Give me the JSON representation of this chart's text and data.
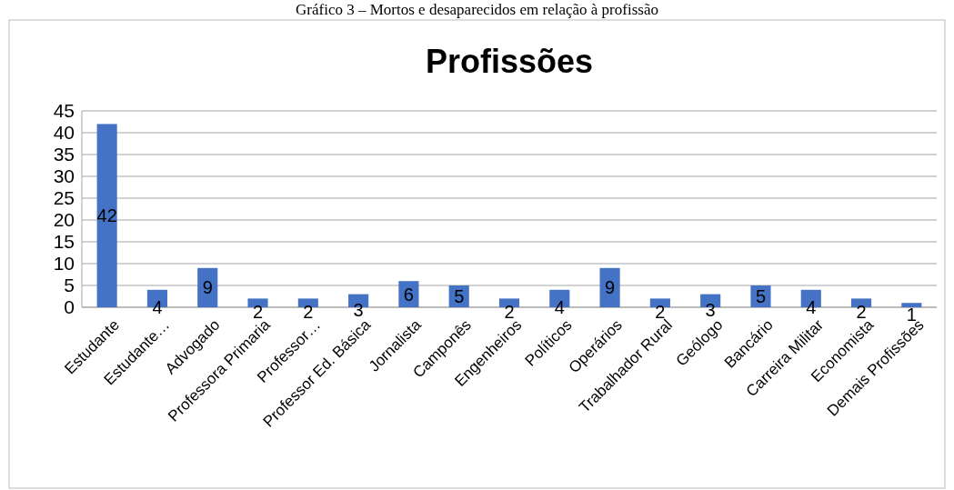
{
  "chart_data": {
    "type": "bar",
    "title": "Profissões",
    "annotations": [
      "Gráfico 3 – Mortos e desaparecidos em relação à profissão"
    ],
    "categories": [
      "Estudante",
      "Estudante…",
      "Advogado",
      "Professora Primaria",
      "Professor…",
      "Professor Ed. Básica",
      "Jornalista",
      "Camponês",
      "Engenheiros",
      "Políticos",
      "Operários",
      "Trabalhador Rural",
      "Geólogo",
      "Bancário",
      "Carreira Militar",
      "Economista",
      "Demais Profissões"
    ],
    "values": [
      42,
      4,
      9,
      2,
      2,
      3,
      6,
      5,
      2,
      4,
      9,
      2,
      3,
      5,
      4,
      2,
      1
    ],
    "color": "#4472c4",
    "ylim": [
      0,
      45
    ],
    "yticks": [
      0,
      5,
      10,
      15,
      20,
      25,
      30,
      35,
      40,
      45
    ],
    "grid": "y",
    "data_labels": true
  }
}
